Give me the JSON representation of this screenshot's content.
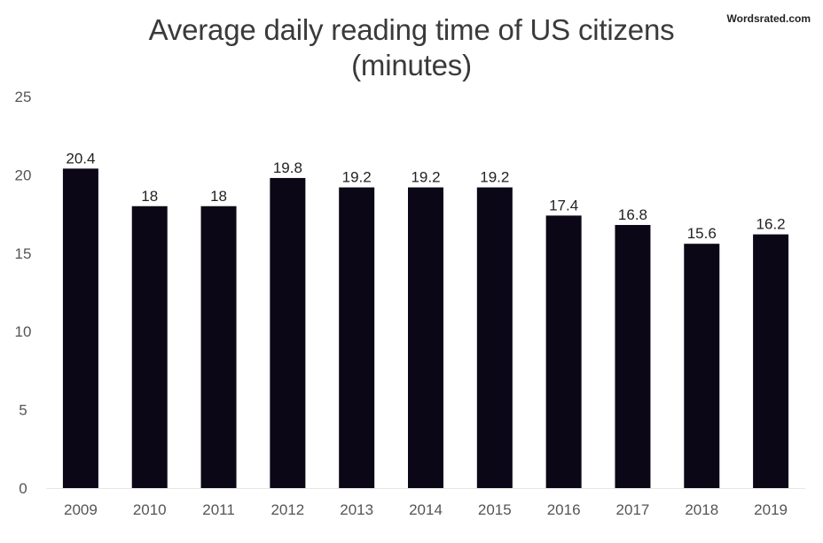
{
  "brand": {
    "watermark": "Wordsrated.com"
  },
  "colors": {
    "bar": "#0c0717",
    "tick_text": "#555555",
    "label_text": "#222222",
    "title_text": "#3a3a3a",
    "baseline": "#e6e6e6"
  },
  "chart_data": {
    "type": "bar",
    "title": "Average daily reading time of US citizens",
    "subtitle": "(minutes)",
    "xlabel": "",
    "ylabel": "",
    "categories": [
      "2009",
      "2010",
      "2011",
      "2012",
      "2013",
      "2014",
      "2015",
      "2016",
      "2017",
      "2018",
      "2019"
    ],
    "values": [
      20.4,
      18,
      18,
      19.8,
      19.2,
      19.2,
      19.2,
      17.4,
      16.8,
      15.6,
      16.2
    ],
    "value_labels": [
      "20.4",
      "18",
      "18",
      "19.8",
      "19.2",
      "19.2",
      "19.2",
      "17.4",
      "16.8",
      "15.6",
      "16.2"
    ],
    "ylim": [
      0,
      25
    ],
    "yticks": [
      0,
      5,
      10,
      15,
      20,
      25
    ],
    "grid": false,
    "legend": "none"
  }
}
